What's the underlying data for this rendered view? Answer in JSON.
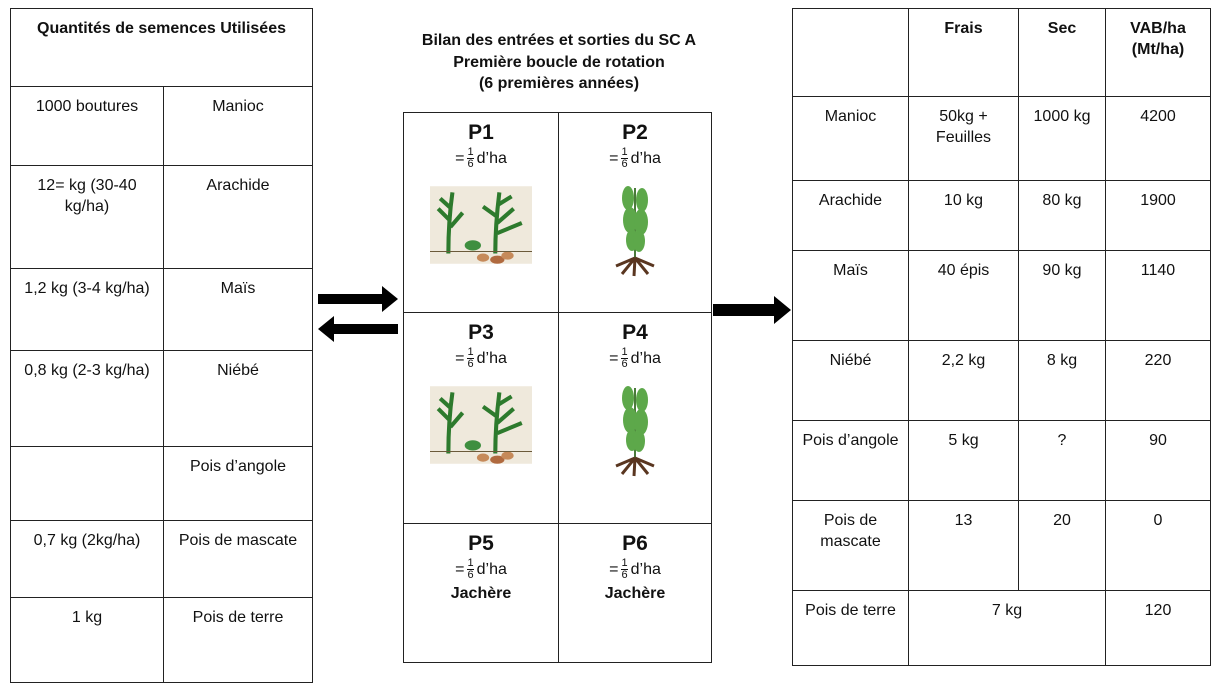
{
  "left_table": {
    "header": "Quantités de semences Utilisées",
    "rows": [
      {
        "quantity": "1000 boutures",
        "crop": "Manioc"
      },
      {
        "quantity": "12= kg (30-40 kg/ha)",
        "crop": "Arachide"
      },
      {
        "quantity": "1,2 kg (3-4 kg/ha)",
        "crop": "Maïs"
      },
      {
        "quantity": "0,8 kg (2-3 kg/ha)",
        "crop": "Niébé"
      },
      {
        "crop": "Pois d’angole"
      },
      {
        "quantity": "0,7 kg (2kg/ha)",
        "crop": "Pois de mascate"
      },
      {
        "quantity": "1 kg",
        "crop": "Pois de terre"
      }
    ]
  },
  "center": {
    "title": [
      "Bilan des entrées et sorties du SC A",
      "Première boucle de rotation",
      "(6 premières années)"
    ],
    "plots": [
      {
        "name": "P1",
        "area": {
          "prefix": "=",
          "numerator": "1",
          "denominator": "6",
          "unit": "d’ha"
        }
      },
      {
        "name": "P2",
        "area": {
          "prefix": "=",
          "numerator": "1",
          "denominator": "6",
          "unit": "d’ha"
        }
      },
      {
        "name": "P3",
        "area": {
          "prefix": "=",
          "numerator": "1",
          "denominator": "6",
          "unit": "d’ha"
        }
      },
      {
        "name": "P4",
        "area": {
          "prefix": "=",
          "numerator": "1",
          "denominator": "6",
          "unit": "d’ha"
        }
      },
      {
        "name": "P5",
        "area": {
          "prefix": "=",
          "numerator": "1",
          "denominator": "6",
          "unit": "d’ha"
        },
        "note": "Jachère"
      },
      {
        "name": "P6",
        "area": {
          "prefix": "=",
          "numerator": "1",
          "denominator": "6",
          "unit": "d’ha"
        },
        "note": "Jachère"
      }
    ]
  },
  "right_table": {
    "columns": [
      "Frais",
      "Sec",
      "VAB/ha (Mt/ha)"
    ],
    "rows": [
      {
        "crop": "Manioc",
        "frais": "50kg + Feuilles",
        "sec": "1000 kg",
        "vab": 4200
      },
      {
        "crop": "Arachide",
        "frais": "10 kg",
        "sec": "80 kg",
        "vab": 1900
      },
      {
        "crop": "Maïs",
        "frais": "40 épis",
        "sec": "90 kg",
        "vab": 1140
      },
      {
        "crop": "Niébé",
        "frais": "2,2 kg",
        "sec": "8 kg",
        "vab": 220
      },
      {
        "crop": "Pois d’angole",
        "frais": "5 kg",
        "sec": "?",
        "vab": 90
      },
      {
        "crop": "Pois de mascate",
        "frais": 13,
        "sec": 20,
        "vab": 0
      },
      {
        "crop": "Pois de terre",
        "frais_sec": "7 kg",
        "vab": 120
      }
    ]
  }
}
